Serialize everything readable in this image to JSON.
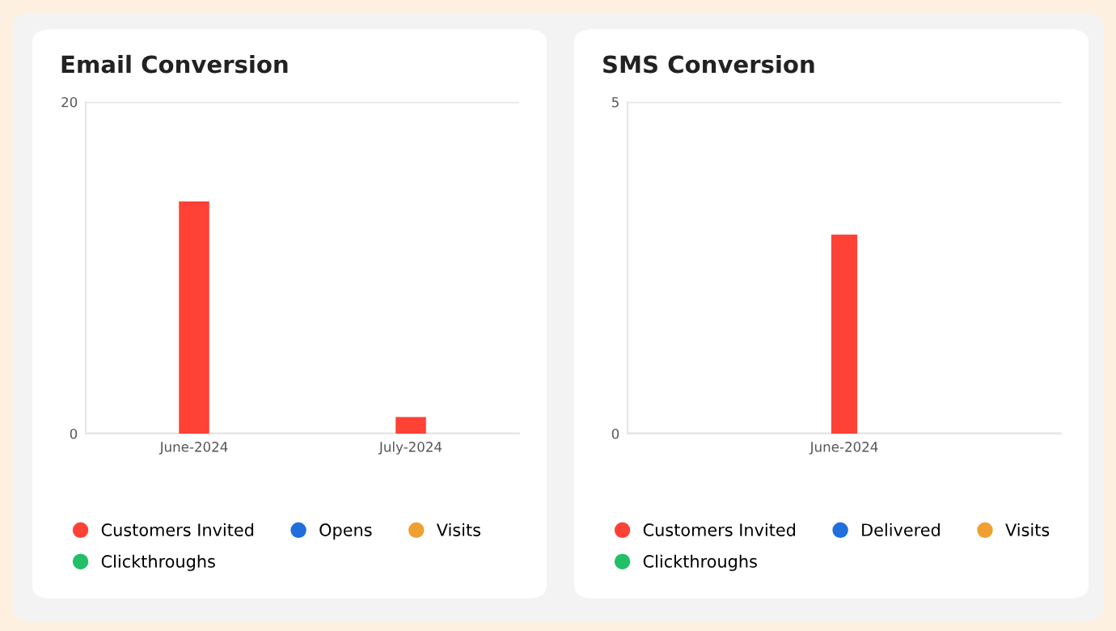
{
  "chart_data": [
    {
      "type": "bar",
      "title": "Email Conversion",
      "categories": [
        "June-2024",
        "July-2024"
      ],
      "ylim": [
        0,
        20
      ],
      "yticks": [
        0,
        20
      ],
      "grid": "y",
      "legend": "bottom",
      "series": [
        {
          "name": "Customers Invited",
          "color": "#ff4136",
          "values": [
            14,
            1
          ]
        },
        {
          "name": "Opens",
          "color": "#1f6fdc",
          "values": [
            0,
            0
          ]
        },
        {
          "name": "Visits",
          "color": "#f0a030",
          "values": [
            0,
            0
          ]
        },
        {
          "name": "Clickthroughs",
          "color": "#22c065",
          "values": [
            0,
            0
          ]
        }
      ]
    },
    {
      "type": "bar",
      "title": "SMS Conversion",
      "categories": [
        "June-2024"
      ],
      "ylim": [
        0,
        5
      ],
      "yticks": [
        0,
        5
      ],
      "grid": "y",
      "legend": "bottom",
      "series": [
        {
          "name": "Customers Invited",
          "color": "#ff4136",
          "values": [
            3
          ]
        },
        {
          "name": "Delivered",
          "color": "#1f6fdc",
          "values": [
            0
          ]
        },
        {
          "name": "Visits",
          "color": "#f0a030",
          "values": [
            0
          ]
        },
        {
          "name": "Clickthroughs",
          "color": "#22c065",
          "values": [
            0
          ]
        }
      ]
    }
  ]
}
